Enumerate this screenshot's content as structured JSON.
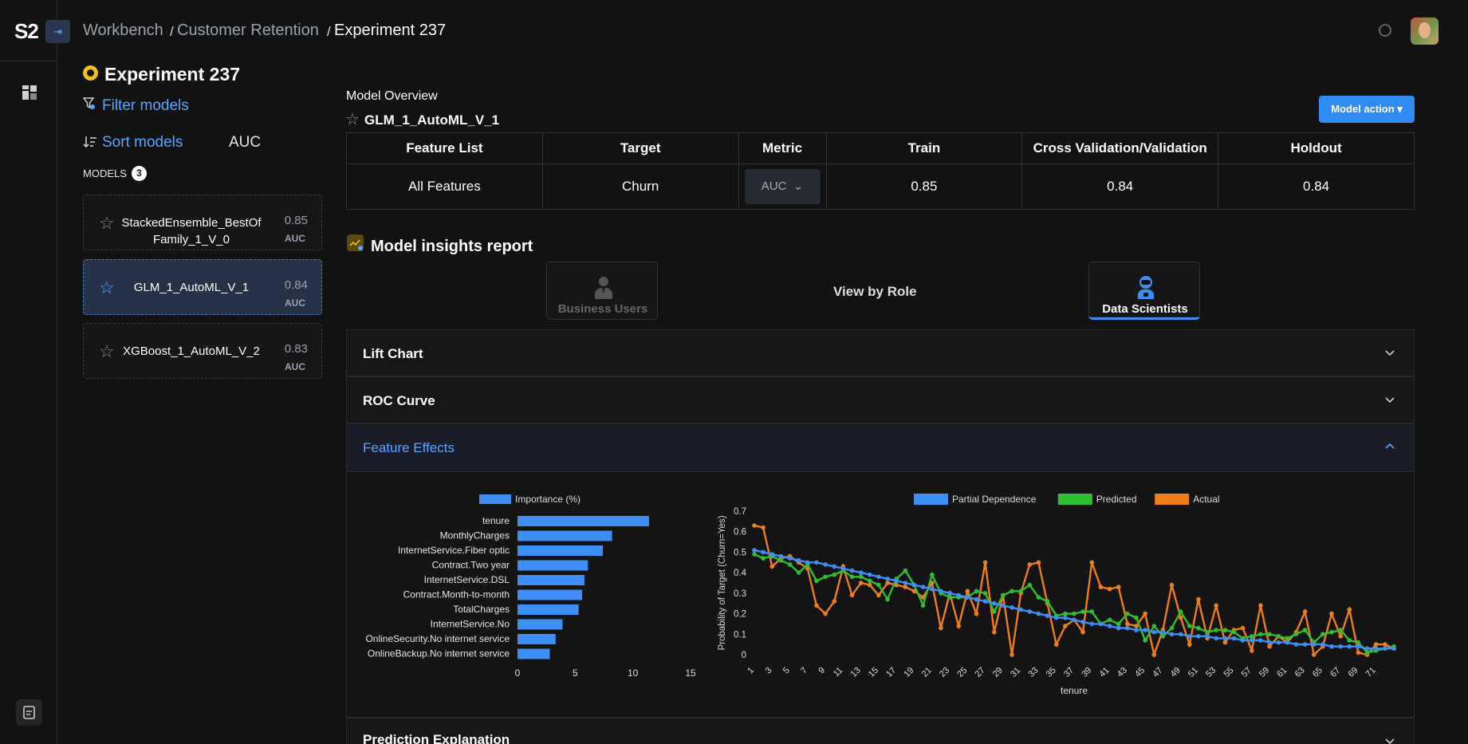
{
  "app": {
    "logo": "S2"
  },
  "breadcrumb": {
    "items": [
      "Workbench",
      "Customer Retention",
      "Experiment 237"
    ],
    "separator": "/"
  },
  "experiment": {
    "title": "Experiment 237"
  },
  "sidebar": {
    "filter_label": "Filter models",
    "sort_label": "Sort models",
    "sort_metric": "AUC",
    "models_heading": "MODELS",
    "models_count": "3",
    "models": [
      {
        "name": "StackedEnsemble_BestOfFamily_1_V_0",
        "score": "0.85",
        "metric": "AUC",
        "selected": false
      },
      {
        "name": "GLM_1_AutoML_V_1",
        "score": "0.84",
        "metric": "AUC",
        "selected": true
      },
      {
        "name": "XGBoost_1_AutoML_V_2",
        "score": "0.83",
        "metric": "AUC",
        "selected": false
      }
    ]
  },
  "overview": {
    "label": "Model Overview",
    "model_name": "GLM_1_AutoML_V_1",
    "action_label": "Model action",
    "headers": [
      "Feature List",
      "Target",
      "Metric",
      "Train",
      "Cross Validation/Validation",
      "Holdout"
    ],
    "row": {
      "feature_list": "All Features",
      "target": "Churn",
      "metric": "AUC",
      "train": "0.85",
      "cv": "0.84",
      "holdout": "0.84"
    }
  },
  "insights": {
    "title": "Model insights report",
    "view_by_role": "View by Role",
    "roles": [
      {
        "label": "Business Users",
        "active": false
      },
      {
        "label": "Data Scientists",
        "active": true
      }
    ]
  },
  "accordions": [
    {
      "label": "Lift Chart",
      "expanded": false
    },
    {
      "label": "ROC Curve",
      "expanded": false
    },
    {
      "label": "Feature Effects",
      "expanded": true
    },
    {
      "label": "Prediction Explanation",
      "expanded": false
    }
  ],
  "colors": {
    "accent": "#2f8cf7",
    "partial_dependence": "#3d8ef5",
    "predicted": "#2fbf2f",
    "actual": "#ee7d1c"
  },
  "chart_data": [
    {
      "type": "bar",
      "orientation": "horizontal",
      "legend": "Importance (%)",
      "categories": [
        "tenure",
        "MonthlyCharges",
        "InternetService.Fiber optic",
        "Contract.Two year",
        "InternetService.DSL",
        "Contract.Month-to-month",
        "TotalCharges",
        "InternetService.No",
        "OnlineSecurity.No internet service",
        "OnlineBackup.No internet service"
      ],
      "values": [
        11.4,
        8.2,
        7.4,
        6.1,
        5.8,
        5.6,
        5.3,
        3.9,
        3.3,
        2.8
      ],
      "xlim": [
        0,
        15
      ],
      "xticks": [
        0,
        5,
        10,
        15
      ]
    },
    {
      "type": "line",
      "xlabel": "tenure",
      "ylabel": "Probability of Target (Churn=Yes)",
      "ylim": [
        0,
        0.7
      ],
      "yticks": [
        0,
        0.1,
        0.2,
        0.3,
        0.4,
        0.5,
        0.6,
        0.7
      ],
      "xticks": [
        1,
        3,
        5,
        7,
        9,
        11,
        13,
        15,
        17,
        19,
        21,
        23,
        25,
        27,
        29,
        31,
        33,
        35,
        37,
        39,
        41,
        43,
        45,
        47,
        49,
        51,
        53,
        55,
        57,
        59,
        61,
        63,
        65,
        67,
        69,
        71
      ],
      "x_start": 1,
      "series": [
        {
          "name": "Partial Dependence",
          "values": [
            0.51,
            0.5,
            0.49,
            0.48,
            0.47,
            0.46,
            0.45,
            0.45,
            0.44,
            0.43,
            0.42,
            0.41,
            0.4,
            0.39,
            0.38,
            0.37,
            0.36,
            0.35,
            0.34,
            0.33,
            0.32,
            0.31,
            0.3,
            0.29,
            0.28,
            0.27,
            0.26,
            0.25,
            0.24,
            0.23,
            0.22,
            0.21,
            0.2,
            0.19,
            0.18,
            0.18,
            0.17,
            0.16,
            0.15,
            0.15,
            0.14,
            0.13,
            0.13,
            0.12,
            0.12,
            0.11,
            0.11,
            0.1,
            0.1,
            0.09,
            0.09,
            0.09,
            0.08,
            0.08,
            0.08,
            0.07,
            0.07,
            0.07,
            0.06,
            0.06,
            0.06,
            0.05,
            0.05,
            0.05,
            0.05,
            0.04,
            0.04,
            0.04,
            0.04,
            0.03,
            0.03,
            0.03,
            0.03
          ]
        },
        {
          "name": "Predicted",
          "values": [
            0.49,
            0.47,
            0.48,
            0.46,
            0.44,
            0.4,
            0.44,
            0.36,
            0.38,
            0.39,
            0.41,
            0.38,
            0.38,
            0.36,
            0.34,
            0.27,
            0.37,
            0.41,
            0.34,
            0.24,
            0.39,
            0.3,
            0.28,
            0.28,
            0.28,
            0.31,
            0.3,
            0.21,
            0.29,
            0.31,
            0.31,
            0.34,
            0.28,
            0.26,
            0.19,
            0.2,
            0.2,
            0.21,
            0.21,
            0.15,
            0.17,
            0.15,
            0.2,
            0.18,
            0.07,
            0.14,
            0.09,
            0.13,
            0.21,
            0.14,
            0.13,
            0.11,
            0.12,
            0.12,
            0.11,
            0.08,
            0.09,
            0.1,
            0.1,
            0.09,
            0.08,
            0.1,
            0.12,
            0.06,
            0.1,
            0.11,
            0.12,
            0.07,
            0.06,
            0.01,
            0.02,
            0.03,
            0.04
          ]
        },
        {
          "name": "Actual",
          "values": [
            0.63,
            0.62,
            0.43,
            0.47,
            0.48,
            0.45,
            0.42,
            0.24,
            0.2,
            0.26,
            0.43,
            0.29,
            0.35,
            0.34,
            0.29,
            0.35,
            0.34,
            0.33,
            0.31,
            0.28,
            0.35,
            0.13,
            0.3,
            0.14,
            0.31,
            0.2,
            0.45,
            0.11,
            0.29,
            0.0,
            0.3,
            0.44,
            0.45,
            0.25,
            0.05,
            0.14,
            0.17,
            0.11,
            0.45,
            0.33,
            0.32,
            0.33,
            0.15,
            0.14,
            0.2,
            0.0,
            0.12,
            0.34,
            0.18,
            0.05,
            0.27,
            0.08,
            0.24,
            0.06,
            0.12,
            0.13,
            0.02,
            0.24,
            0.04,
            0.09,
            0.06,
            0.11,
            0.21,
            0.0,
            0.04,
            0.2,
            0.09,
            0.22,
            0.01,
            0.0,
            0.05,
            0.05,
            0.03
          ]
        }
      ]
    }
  ]
}
